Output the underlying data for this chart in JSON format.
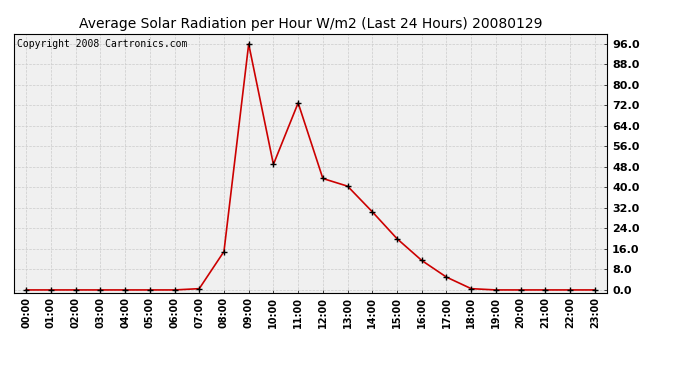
{
  "title": "Average Solar Radiation per Hour W/m2 (Last 24 Hours) 20080129",
  "copyright": "Copyright 2008 Cartronics.com",
  "hours": [
    "00:00",
    "01:00",
    "02:00",
    "03:00",
    "04:00",
    "05:00",
    "06:00",
    "07:00",
    "08:00",
    "09:00",
    "10:00",
    "11:00",
    "12:00",
    "13:00",
    "14:00",
    "15:00",
    "16:00",
    "17:00",
    "18:00",
    "19:00",
    "20:00",
    "21:00",
    "22:00",
    "23:00"
  ],
  "values": [
    0.0,
    0.0,
    0.0,
    0.0,
    0.0,
    0.0,
    0.0,
    0.5,
    15.0,
    96.0,
    49.0,
    73.0,
    43.5,
    40.5,
    30.5,
    20.0,
    11.5,
    5.0,
    0.5,
    0.0,
    0.0,
    0.0,
    0.0,
    0.0
  ],
  "line_color": "#cc0000",
  "marker": "+",
  "marker_color": "#000000",
  "marker_size": 5,
  "ylim": [
    -1.0,
    100.0
  ],
  "yticks": [
    0.0,
    8.0,
    16.0,
    24.0,
    32.0,
    40.0,
    48.0,
    56.0,
    64.0,
    72.0,
    80.0,
    88.0,
    96.0
  ],
  "grid_color": "#cccccc",
  "bg_color": "#ffffff",
  "plot_bg_color": "#f0f0f0",
  "title_fontsize": 10,
  "copyright_fontsize": 7,
  "tick_fontsize": 7,
  "ytick_fontsize": 8
}
